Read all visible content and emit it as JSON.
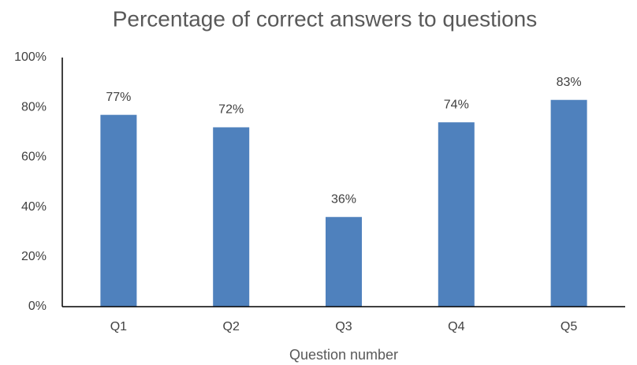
{
  "chart_data": {
    "type": "bar",
    "title": "Percentage of correct answers to questions",
    "x_label": "Question number",
    "categories": [
      "Q1",
      "Q2",
      "Q3",
      "Q4",
      "Q5"
    ],
    "values": [
      77,
      72,
      36,
      74,
      83
    ],
    "value_labels": [
      "77%",
      "72%",
      "36%",
      "74%",
      "83%"
    ],
    "color": "#4f81bd",
    "ylim": [
      0,
      100
    ],
    "yticks": [
      {
        "value": 0,
        "label": "0%"
      },
      {
        "value": 20,
        "label": "20%"
      },
      {
        "value": 40,
        "label": "40%"
      },
      {
        "value": 60,
        "label": "60%"
      },
      {
        "value": 80,
        "label": "80%"
      },
      {
        "value": 100,
        "label": "100%"
      }
    ],
    "grid": false
  }
}
